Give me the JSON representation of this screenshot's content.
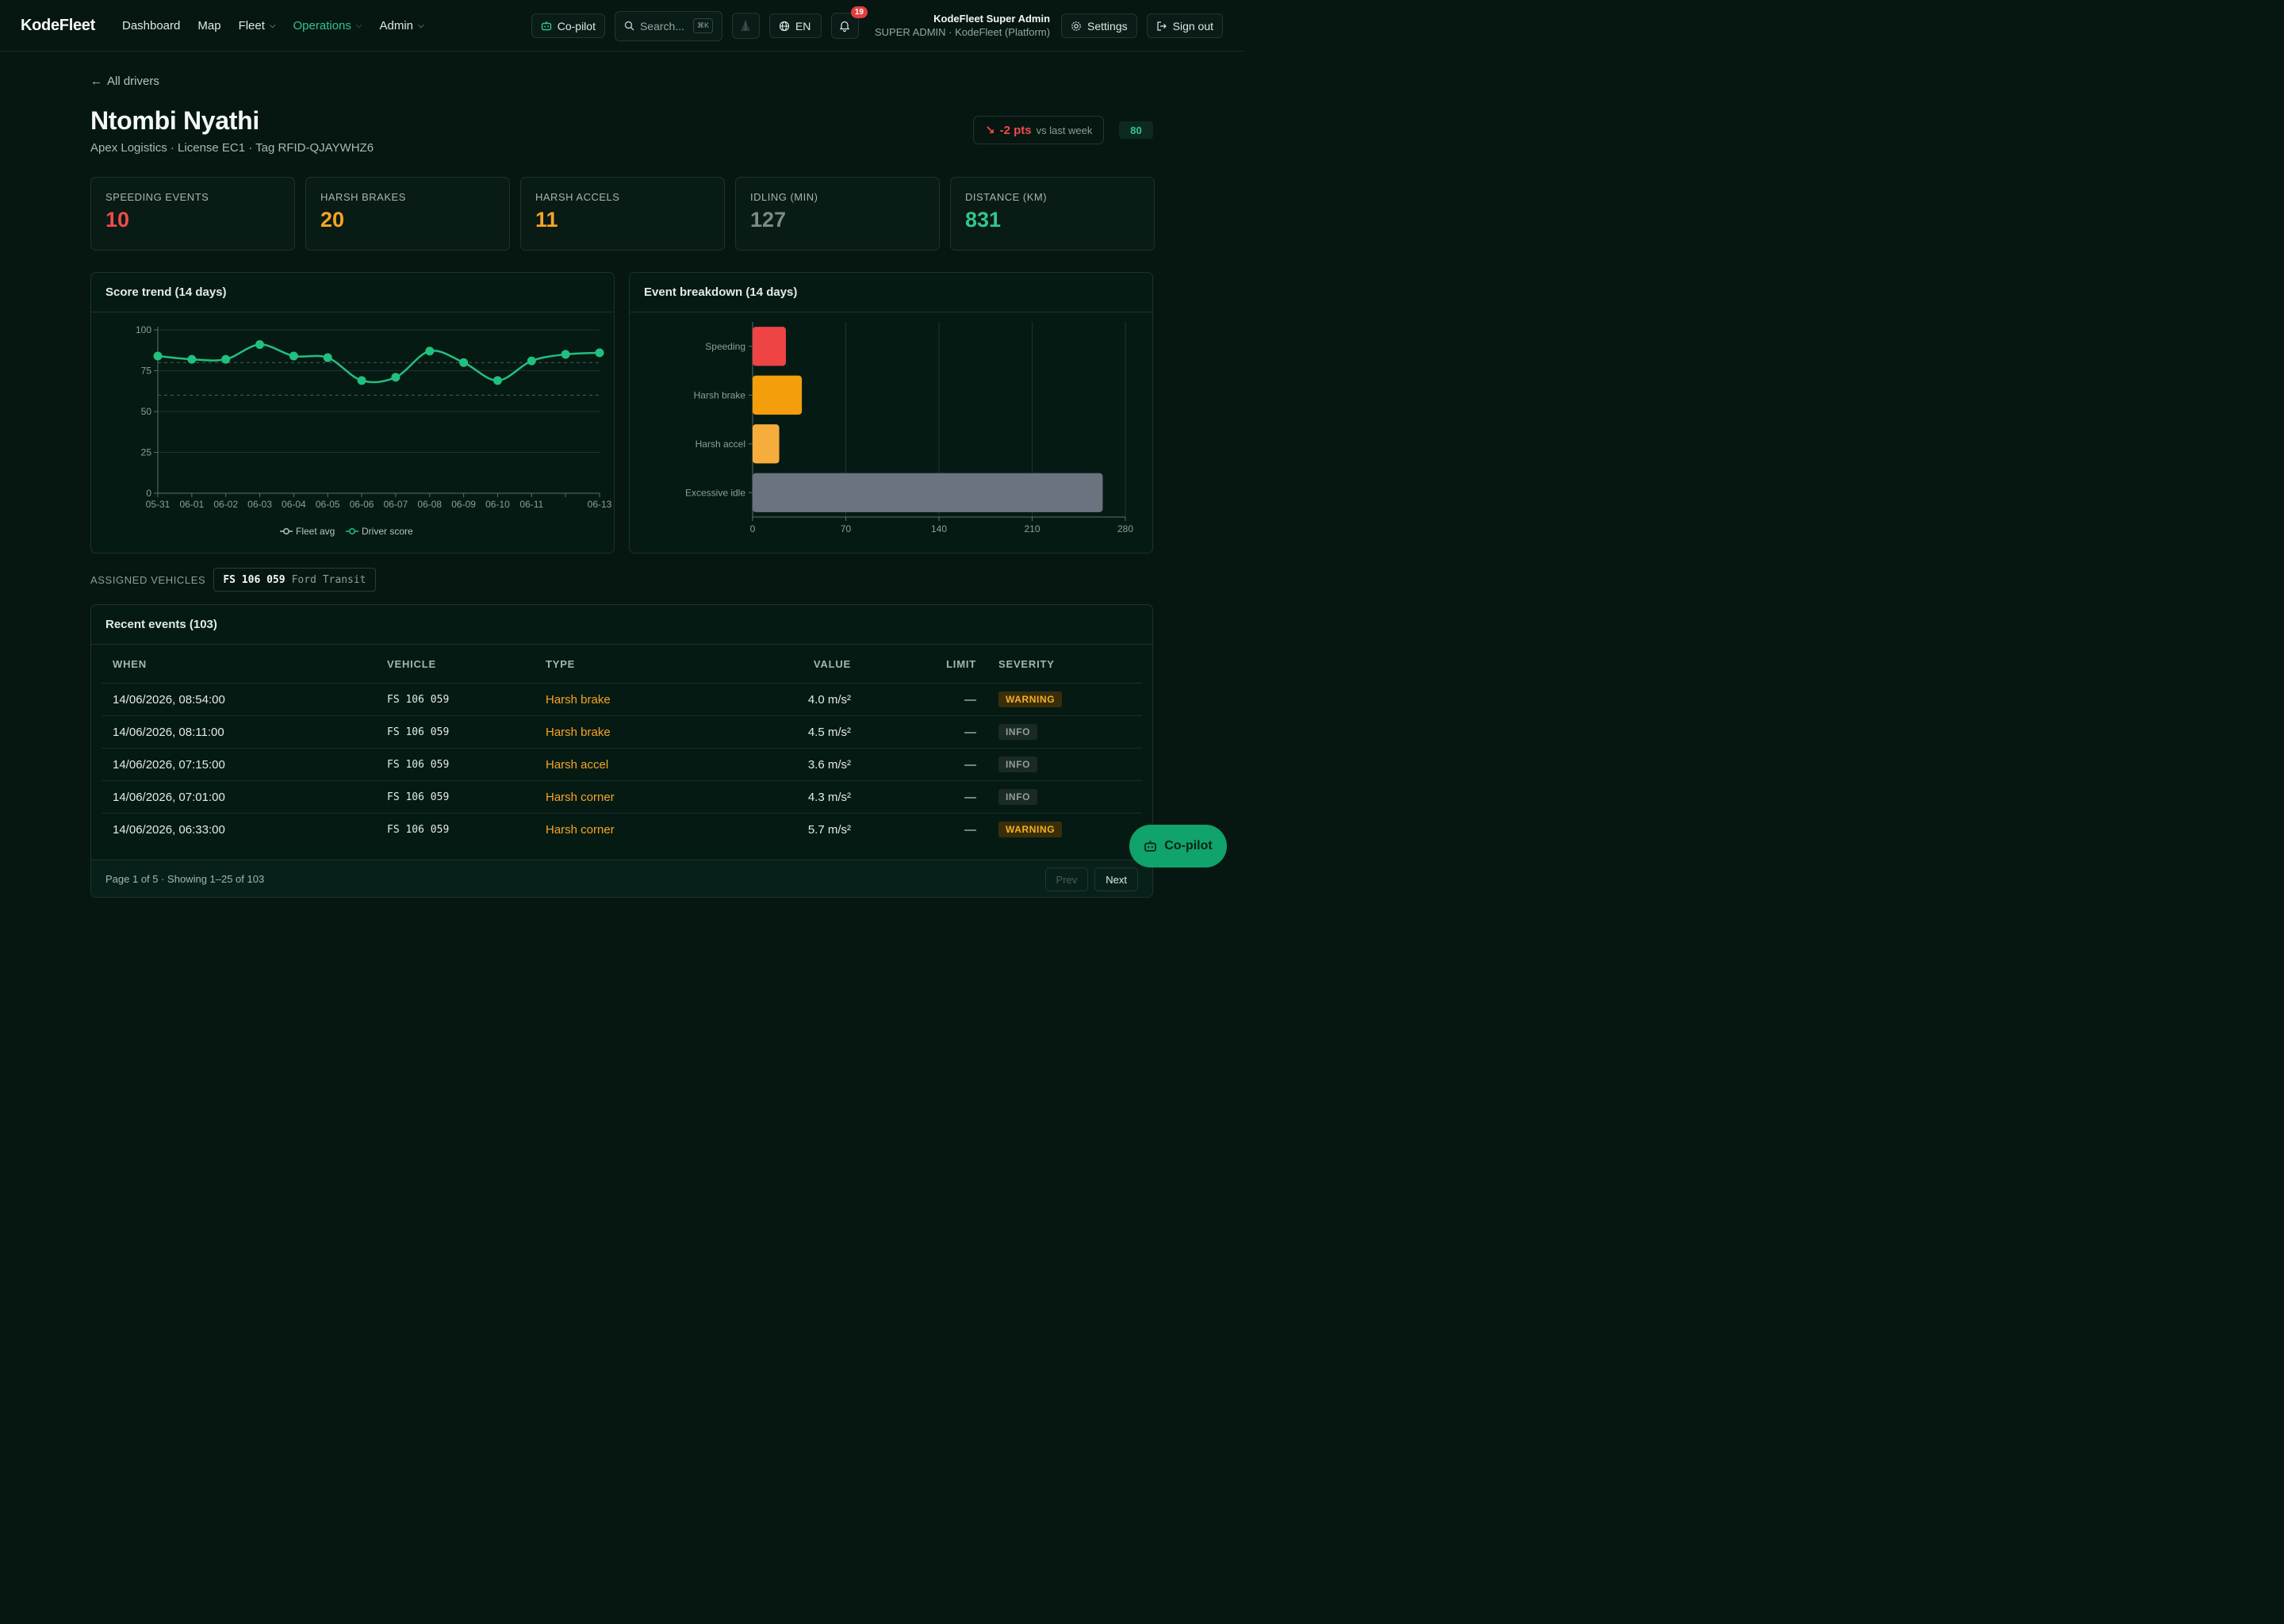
{
  "brand": "KodeFleet",
  "nav": {
    "items": [
      {
        "label": "Dashboard",
        "dropdown": false,
        "active": false
      },
      {
        "label": "Map",
        "dropdown": false,
        "active": false
      },
      {
        "label": "Fleet",
        "dropdown": true,
        "active": false
      },
      {
        "label": "Operations",
        "dropdown": true,
        "active": true
      },
      {
        "label": "Admin",
        "dropdown": true,
        "active": false
      }
    ]
  },
  "topbar": {
    "copilot_label": "Co-pilot",
    "search_placeholder": "Search...",
    "search_shortcut": "⌘K",
    "language": "EN",
    "notification_count": "19",
    "user_name": "KodeFleet Super Admin",
    "user_role": "SUPER ADMIN · KodeFleet (Platform)",
    "settings_label": "Settings",
    "signout_label": "Sign out"
  },
  "colors": {
    "accent": "#34c48a",
    "red": "#ef4b4b",
    "orange": "#f5a524",
    "gray": "#6f7886"
  },
  "driver": {
    "back_label": "All drivers",
    "name": "Ntombi Nyathi",
    "subtitle": "Apex Logistics · License EC1 · Tag RFID-QJAYWHZ6",
    "trend_value": "-2 pts",
    "trend_suffix": "vs last week",
    "score": "80"
  },
  "stats": [
    {
      "label": "SPEEDING EVENTS",
      "value": "10",
      "color": "#ef4b4b"
    },
    {
      "label": "HARSH BRAKES",
      "value": "20",
      "color": "#f5a524"
    },
    {
      "label": "HARSH ACCELS",
      "value": "11",
      "color": "#f5a524"
    },
    {
      "label": "IDLING (MIN)",
      "value": "127",
      "color": "#7e8a86"
    },
    {
      "label": "DISTANCE (KM)",
      "value": "831",
      "color": "#34c48a"
    }
  ],
  "chart_data": [
    {
      "type": "line",
      "title": "Score trend (14 days)",
      "x": [
        "05-31",
        "06-01",
        "06-02",
        "06-03",
        "06-04",
        "06-05",
        "06-06",
        "06-07",
        "06-08",
        "06-09",
        "06-10",
        "06-11",
        "06-12",
        "06-13"
      ],
      "xtick_labels": [
        "05-31",
        "06-01",
        "06-02",
        "06-03",
        "06-04",
        "06-05",
        "06-06",
        "06-07",
        "06-08",
        "06-09",
        "06-10",
        "06-11",
        "",
        "06-13"
      ],
      "ylim": [
        0,
        100
      ],
      "yticks": [
        0,
        25,
        50,
        75,
        100
      ],
      "series": [
        {
          "name": "Driver score",
          "values": [
            84,
            82,
            82,
            91,
            84,
            83,
            69,
            71,
            87,
            80,
            69,
            81,
            85,
            86
          ],
          "color": "#22c07f"
        }
      ],
      "reference_lines": [
        80,
        60
      ],
      "legend": [
        "Fleet avg",
        "Driver score"
      ],
      "legend_position": "bottom",
      "grid": true
    },
    {
      "type": "bar",
      "orientation": "horizontal",
      "title": "Event breakdown (14 days)",
      "categories": [
        "Speeding",
        "Harsh brake",
        "Harsh accel",
        "Excessive idle"
      ],
      "values": [
        25,
        37,
        20,
        263
      ],
      "colors": [
        "#ef4444",
        "#f59e0b",
        "#f6ad3c",
        "#6b7280"
      ],
      "xlim": [
        0,
        280
      ],
      "xticks": [
        0,
        70,
        140,
        210,
        280
      ],
      "grid": true
    }
  ],
  "assigned": {
    "label": "ASSIGNED VEHICLES",
    "plate": "FS 106 059",
    "model": "Ford Transit"
  },
  "events": {
    "title": "Recent events (103)",
    "columns": [
      "WHEN",
      "VEHICLE",
      "TYPE",
      "VALUE",
      "LIMIT",
      "SEVERITY"
    ],
    "rows": [
      {
        "when": "14/06/2026, 08:54:00",
        "vehicle": "FS 106 059",
        "type": "Harsh brake",
        "value": "4.0 m/s²",
        "limit": "—",
        "severity": "WARNING"
      },
      {
        "when": "14/06/2026, 08:11:00",
        "vehicle": "FS 106 059",
        "type": "Harsh brake",
        "value": "4.5 m/s²",
        "limit": "—",
        "severity": "INFO"
      },
      {
        "when": "14/06/2026, 07:15:00",
        "vehicle": "FS 106 059",
        "type": "Harsh accel",
        "value": "3.6 m/s²",
        "limit": "—",
        "severity": "INFO"
      },
      {
        "when": "14/06/2026, 07:01:00",
        "vehicle": "FS 106 059",
        "type": "Harsh corner",
        "value": "4.3 m/s²",
        "limit": "—",
        "severity": "INFO"
      },
      {
        "when": "14/06/2026, 06:33:00",
        "vehicle": "FS 106 059",
        "type": "Harsh corner",
        "value": "5.7 m/s²",
        "limit": "—",
        "severity": "WARNING"
      }
    ],
    "footer": "Page 1 of 5 · Showing 1–25 of 103",
    "prev_label": "Prev",
    "next_label": "Next"
  },
  "fab_label": "Co-pilot"
}
